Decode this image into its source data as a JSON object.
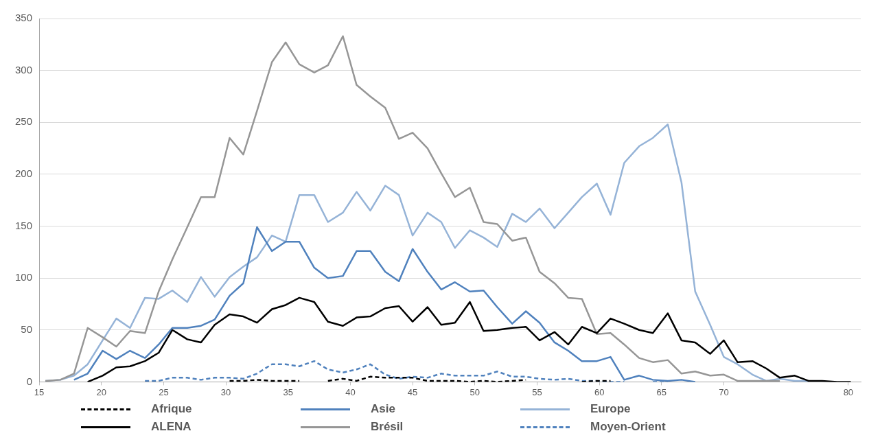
{
  "chart_data": {
    "type": "line",
    "x": [
      15.5,
      16.7,
      17.8,
      18.9,
      20.1,
      21.2,
      22.3,
      23.5,
      24.6,
      25.7,
      26.9,
      28.0,
      29.1,
      30.3,
      31.4,
      32.5,
      33.7,
      34.8,
      35.9,
      37.1,
      38.2,
      39.4,
      40.5,
      41.6,
      42.8,
      43.9,
      45.0,
      46.2,
      47.3,
      48.4,
      49.6,
      50.7,
      51.8,
      53.0,
      54.1,
      55.2,
      56.4,
      57.5,
      58.6,
      59.8,
      60.9,
      62.0,
      63.2,
      64.3,
      65.5,
      66.6,
      67.7,
      68.9,
      70.0,
      71.1,
      72.3,
      73.4,
      74.5,
      75.7,
      76.8,
      77.9,
      79.1,
      80.2
    ],
    "xlim": [
      15,
      81
    ],
    "xticks": [
      15,
      20,
      25,
      30,
      35,
      40,
      45,
      50,
      55,
      60,
      65,
      70,
      80
    ],
    "ylim": [
      0,
      350
    ],
    "yticks": [
      0,
      50,
      100,
      150,
      200,
      250,
      300,
      350
    ],
    "grid": "y",
    "legend": "bottom",
    "marker": "none",
    "series": [
      {
        "name": "Afrique",
        "color": "#000000",
        "line_style": "dashed",
        "values": [
          null,
          null,
          null,
          null,
          null,
          null,
          null,
          null,
          null,
          null,
          null,
          null,
          null,
          1,
          1,
          2,
          1,
          1,
          1,
          null,
          1,
          3,
          1,
          5,
          4,
          4,
          4,
          1,
          1,
          1,
          0,
          1,
          0,
          1,
          2,
          null,
          null,
          null,
          0,
          1,
          1,
          null,
          null,
          null,
          null,
          null,
          null,
          null,
          null,
          null,
          null,
          null,
          null,
          null,
          null,
          null,
          null,
          null
        ]
      },
      {
        "name": "ALENA",
        "color": "#000000",
        "line_style": "solid",
        "values": [
          null,
          null,
          null,
          0,
          6,
          14,
          15,
          20,
          28,
          50,
          41,
          38,
          55,
          65,
          63,
          57,
          70,
          74,
          81,
          77,
          58,
          54,
          62,
          63,
          71,
          73,
          58,
          72,
          55,
          57,
          77,
          49,
          50,
          52,
          53,
          40,
          48,
          36,
          53,
          47,
          61,
          56,
          50,
          47,
          66,
          40,
          38,
          27,
          40,
          19,
          20,
          13,
          4,
          6,
          1,
          1,
          0,
          0
        ]
      },
      {
        "name": "Asie",
        "color": "#4f81bd",
        "line_style": "solid",
        "values": [
          null,
          null,
          2,
          8,
          30,
          22,
          30,
          23,
          36,
          52,
          52,
          54,
          60,
          83,
          95,
          149,
          126,
          135,
          135,
          110,
          100,
          102,
          126,
          126,
          106,
          97,
          128,
          106,
          89,
          96,
          87,
          88,
          72,
          56,
          68,
          57,
          38,
          30,
          20,
          20,
          24,
          2,
          6,
          2,
          1,
          2,
          0,
          null,
          null,
          null,
          null,
          null,
          null,
          null,
          null,
          null,
          null,
          null
        ]
      },
      {
        "name": "Brésil",
        "color": "#969696",
        "line_style": "solid",
        "values": [
          1,
          2,
          8,
          52,
          43,
          34,
          49,
          47,
          87,
          118,
          149,
          178,
          178,
          235,
          219,
          261,
          308,
          327,
          306,
          298,
          305,
          333,
          286,
          275,
          264,
          234,
          240,
          225,
          201,
          178,
          187,
          154,
          152,
          136,
          139,
          106,
          95,
          81,
          80,
          46,
          47,
          36,
          23,
          19,
          21,
          8,
          10,
          6,
          7,
          1,
          1,
          1,
          1,
          null,
          null,
          null,
          null,
          null
        ]
      },
      {
        "name": "Europe",
        "color": "#95b3d7",
        "line_style": "solid",
        "values": [
          1,
          2,
          6,
          17,
          40,
          61,
          52,
          81,
          80,
          88,
          77,
          101,
          82,
          101,
          111,
          120,
          141,
          135,
          180,
          180,
          154,
          163,
          183,
          165,
          189,
          180,
          141,
          163,
          154,
          129,
          146,
          139,
          130,
          162,
          154,
          167,
          148,
          163,
          178,
          191,
          161,
          211,
          227,
          235,
          248,
          192,
          87,
          55,
          24,
          17,
          7,
          1,
          3,
          1,
          1,
          null,
          null,
          null
        ]
      },
      {
        "name": "Moyen-Orient",
        "color": "#4f81bd",
        "line_style": "dashed",
        "values": [
          null,
          null,
          null,
          null,
          null,
          null,
          null,
          1,
          1,
          4,
          4,
          2,
          4,
          4,
          3,
          8,
          17,
          17,
          15,
          20,
          12,
          9,
          12,
          17,
          7,
          3,
          5,
          4,
          8,
          6,
          6,
          6,
          10,
          5,
          5,
          3,
          2,
          3,
          1,
          1,
          0,
          0,
          null,
          0,
          0,
          null,
          null,
          null,
          null,
          null,
          null,
          null,
          null,
          null,
          null,
          null,
          null,
          null
        ]
      }
    ]
  }
}
